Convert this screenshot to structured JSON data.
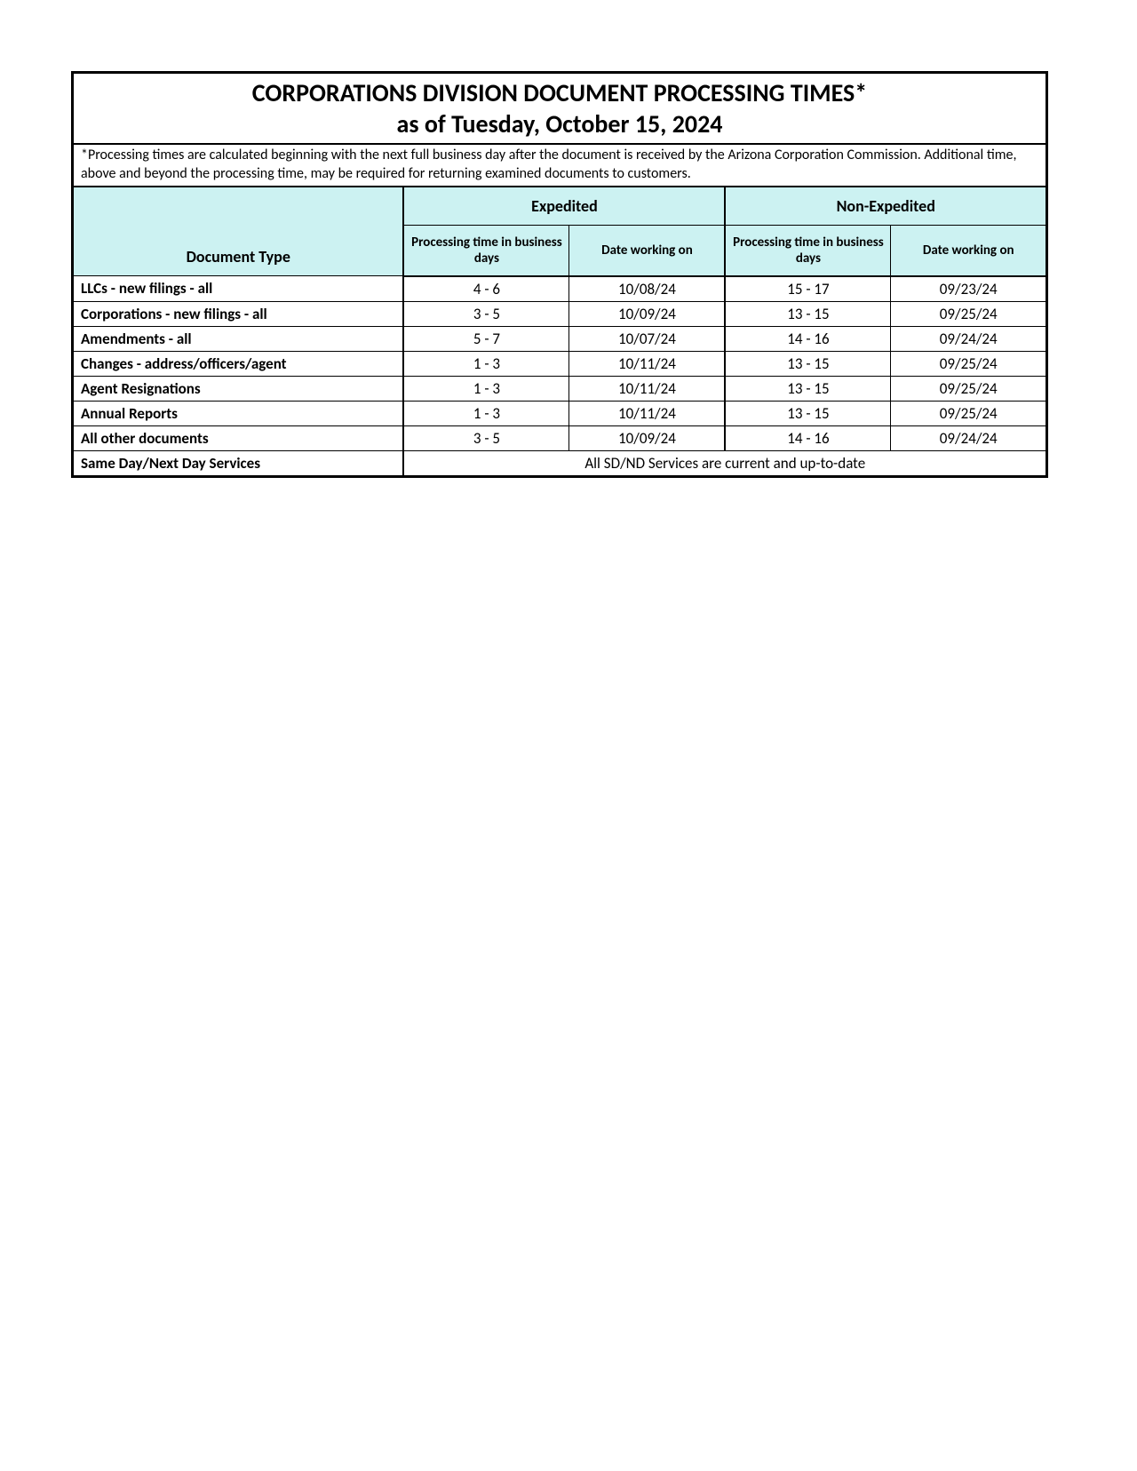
{
  "title": "CORPORATIONS DIVISION DOCUMENT PROCESSING TIMES*",
  "subtitle": "as of Tuesday, October 15, 2024",
  "footnote": "*Processing times are calculated beginning with the next full business day after the document is received by the Arizona Corporation Commission.  Additional time, above and beyond the processing time, may be required for returning examined documents to customers.",
  "headers": {
    "doctype": "Document Type",
    "expedited": "Expedited",
    "non_expedited": "Non-Expedited",
    "ptime": "Processing time in business days",
    "dworking": "Date working on"
  },
  "rows": [
    {
      "label": "LLCs - new filings - all",
      "exp_time": "4 - 6",
      "exp_date": "10/08/24",
      "non_time": "15 - 17",
      "non_date": "09/23/24"
    },
    {
      "label": "Corporations - new filings - all",
      "exp_time": "3 - 5",
      "exp_date": "10/09/24",
      "non_time": "13 - 15",
      "non_date": "09/25/24"
    },
    {
      "label": "Amendments - all",
      "exp_time": "5 - 7",
      "exp_date": "10/07/24",
      "non_time": "14 - 16",
      "non_date": "09/24/24"
    },
    {
      "label": "Changes - address/officers/agent",
      "exp_time": "1 - 3",
      "exp_date": "10/11/24",
      "non_time": "13 - 15",
      "non_date": "09/25/24"
    },
    {
      "label": "Agent Resignations",
      "exp_time": "1 - 3",
      "exp_date": "10/11/24",
      "non_time": "13 - 15",
      "non_date": "09/25/24"
    },
    {
      "label": "Annual Reports",
      "exp_time": "1 - 3",
      "exp_date": "10/11/24",
      "non_time": "13 - 15",
      "non_date": "09/25/24"
    },
    {
      "label": "All other documents",
      "exp_time": "3 - 5",
      "exp_date": "10/09/24",
      "non_time": "14 - 16",
      "non_date": "09/24/24"
    }
  ],
  "footer": {
    "label": "Same Day/Next Day Services",
    "message": "All SD/ND Services are current and up-to-date"
  },
  "colors": {
    "header_bg": "#ccf2f2",
    "border": "#000000",
    "text": "#000000",
    "background": "#ffffff"
  }
}
